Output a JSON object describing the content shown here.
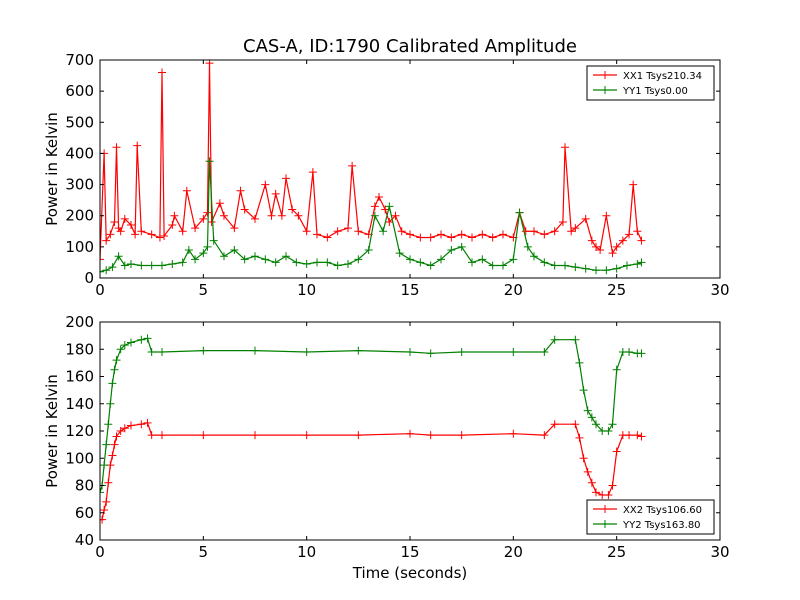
{
  "figure": {
    "title": "CAS-A, ID:1790 Calibrated Amplitude",
    "xlabel": "Time (seconds)"
  },
  "chart_data": [
    {
      "type": "line",
      "title": "CAS-A, ID:1790 Calibrated Amplitude",
      "xlabel": "",
      "ylabel": "Power in Kelvin",
      "xlim": [
        0,
        30
      ],
      "ylim": [
        0,
        700
      ],
      "xticks": [
        "0",
        "5",
        "10",
        "15",
        "20",
        "25",
        "30"
      ],
      "yticks": [
        "0",
        "100",
        "200",
        "300",
        "400",
        "500",
        "600",
        "700"
      ],
      "grid": false,
      "legend": "top-right",
      "marker": "+",
      "series": [
        {
          "name": "XX1 Tsys210.34",
          "color": "#ff0000",
          "x": [
            0.0,
            0.2,
            0.3,
            0.5,
            0.7,
            0.8,
            0.9,
            1.0,
            1.2,
            1.5,
            1.7,
            1.8,
            2.0,
            2.5,
            2.9,
            3.0,
            3.1,
            3.5,
            3.6,
            4.0,
            4.2,
            4.6,
            5.0,
            5.2,
            5.3,
            5.4,
            5.8,
            6.0,
            6.5,
            6.8,
            7.0,
            7.5,
            8.0,
            8.3,
            8.5,
            8.8,
            9.0,
            9.3,
            9.6,
            10.0,
            10.3,
            10.5,
            11.0,
            11.5,
            12.0,
            12.2,
            12.5,
            13.0,
            13.3,
            13.5,
            13.8,
            14.0,
            14.3,
            14.6,
            15.0,
            15.5,
            16.0,
            16.5,
            17.0,
            17.5,
            18.0,
            18.5,
            19.0,
            19.5,
            20.0,
            20.3,
            20.6,
            21.0,
            21.5,
            22.0,
            22.4,
            22.5,
            22.8,
            23.0,
            23.5,
            23.8,
            24.0,
            24.2,
            24.5,
            24.8,
            25.0,
            25.3,
            25.6,
            25.8,
            26.0,
            26.2
          ],
          "y": [
            60,
            400,
            120,
            140,
            180,
            420,
            160,
            150,
            190,
            170,
            140,
            425,
            150,
            140,
            130,
            660,
            135,
            170,
            200,
            150,
            280,
            160,
            190,
            210,
            690,
            180,
            240,
            200,
            160,
            280,
            220,
            190,
            300,
            200,
            270,
            200,
            320,
            220,
            200,
            150,
            340,
            140,
            130,
            150,
            160,
            360,
            150,
            140,
            230,
            260,
            220,
            180,
            200,
            150,
            140,
            130,
            130,
            140,
            130,
            140,
            130,
            140,
            130,
            140,
            130,
            210,
            150,
            150,
            140,
            150,
            180,
            420,
            150,
            160,
            190,
            120,
            100,
            90,
            200,
            80,
            100,
            120,
            140,
            300,
            150,
            120
          ]
        },
        {
          "name": "YY1 Tsys0.00",
          "color": "#008000",
          "x": [
            0.0,
            0.3,
            0.6,
            0.9,
            1.2,
            1.5,
            2.0,
            2.5,
            3.0,
            3.5,
            4.0,
            4.3,
            4.6,
            5.0,
            5.2,
            5.3,
            5.5,
            6.0,
            6.5,
            7.0,
            7.5,
            8.0,
            8.5,
            9.0,
            9.5,
            10.0,
            10.5,
            11.0,
            11.5,
            12.0,
            12.5,
            13.0,
            13.3,
            13.7,
            14.0,
            14.5,
            15.0,
            15.5,
            16.0,
            16.5,
            17.0,
            17.5,
            18.0,
            18.5,
            19.0,
            19.5,
            20.0,
            20.3,
            20.7,
            21.0,
            21.5,
            22.0,
            22.5,
            23.0,
            23.5,
            24.0,
            24.5,
            25.0,
            25.5,
            26.0,
            26.2
          ],
          "y": [
            20,
            25,
            35,
            70,
            40,
            45,
            40,
            40,
            40,
            45,
            50,
            90,
            60,
            80,
            100,
            375,
            120,
            70,
            90,
            60,
            70,
            60,
            50,
            70,
            50,
            45,
            50,
            50,
            40,
            45,
            60,
            90,
            200,
            150,
            230,
            80,
            60,
            50,
            40,
            60,
            90,
            100,
            50,
            60,
            40,
            40,
            60,
            210,
            100,
            70,
            50,
            40,
            40,
            35,
            30,
            25,
            25,
            30,
            40,
            45,
            50
          ]
        }
      ]
    },
    {
      "type": "line",
      "title": "",
      "xlabel": "Time (seconds)",
      "ylabel": "Power in Kelvin",
      "xlim": [
        0,
        30
      ],
      "ylim": [
        40,
        200
      ],
      "xticks": [
        "0",
        "5",
        "10",
        "15",
        "20",
        "25",
        "30"
      ],
      "yticks": [
        "40",
        "60",
        "80",
        "100",
        "120",
        "140",
        "160",
        "180",
        "200"
      ],
      "grid": false,
      "legend": "bottom-right",
      "marker": "+",
      "series": [
        {
          "name": "XX2 Tsys106.60",
          "color": "#ff0000",
          "x": [
            0.0,
            0.1,
            0.2,
            0.3,
            0.4,
            0.5,
            0.6,
            0.7,
            0.8,
            1.0,
            1.2,
            1.5,
            2.0,
            2.3,
            2.5,
            3.0,
            5.0,
            7.5,
            10.0,
            12.5,
            15.0,
            16.0,
            17.5,
            20.0,
            21.5,
            22.0,
            23.0,
            23.2,
            23.4,
            23.6,
            23.8,
            24.0,
            24.3,
            24.6,
            24.8,
            25.0,
            25.3,
            25.6,
            26.0,
            26.2
          ],
          "y": [
            55,
            55,
            62,
            68,
            82,
            95,
            102,
            110,
            116,
            120,
            122,
            124,
            125,
            126,
            117,
            117,
            117,
            117,
            117,
            117,
            118,
            117,
            117,
            118,
            117,
            125,
            125,
            115,
            100,
            90,
            82,
            75,
            73,
            73,
            80,
            105,
            117,
            117,
            117,
            116
          ]
        },
        {
          "name": "YY2 Tsys163.80",
          "color": "#008000",
          "x": [
            0.0,
            0.1,
            0.2,
            0.3,
            0.4,
            0.5,
            0.6,
            0.7,
            0.8,
            1.0,
            1.2,
            1.5,
            2.0,
            2.3,
            2.5,
            3.0,
            5.0,
            7.5,
            10.0,
            12.5,
            15.0,
            16.0,
            17.5,
            20.0,
            21.5,
            22.0,
            23.0,
            23.2,
            23.4,
            23.6,
            23.8,
            24.0,
            24.3,
            24.6,
            24.8,
            25.0,
            25.3,
            25.6,
            26.0,
            26.2
          ],
          "y": [
            75,
            80,
            95,
            110,
            125,
            140,
            155,
            165,
            172,
            180,
            183,
            185,
            187,
            188,
            178,
            178,
            179,
            179,
            178,
            179,
            178,
            177,
            178,
            178,
            178,
            187,
            187,
            170,
            150,
            135,
            130,
            125,
            120,
            120,
            125,
            165,
            178,
            178,
            177,
            177
          ]
        }
      ]
    }
  ]
}
